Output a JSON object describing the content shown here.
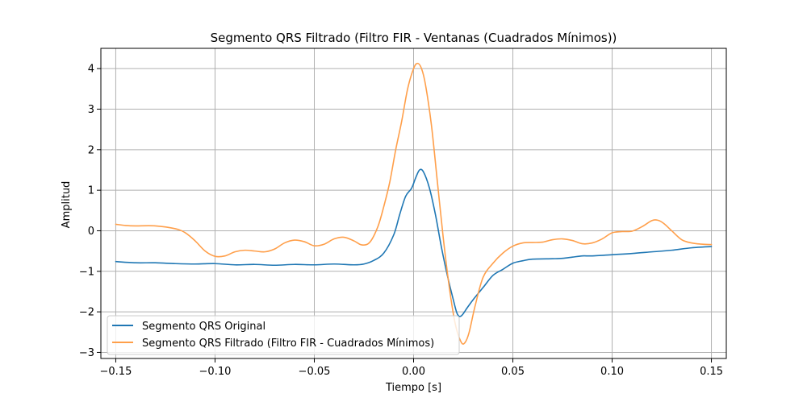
{
  "chart_data": {
    "type": "line",
    "title": "Segmento QRS Filtrado (Filtro FIR - Ventanas (Cuadrados Mínimos))",
    "xlabel": "Tiempo [s]",
    "ylabel": "Amplitud",
    "xlim": [
      -0.1575,
      0.1575
    ],
    "ylim": [
      -3.15,
      4.5
    ],
    "x_ticks": [
      -0.15,
      -0.1,
      -0.05,
      0.0,
      0.05,
      0.1,
      0.15
    ],
    "x_tick_labels": [
      "−0.15",
      "−0.10",
      "−0.05",
      "0.00",
      "0.05",
      "0.10",
      "0.15"
    ],
    "y_ticks": [
      -3,
      -2,
      -1,
      0,
      1,
      2,
      3,
      4
    ],
    "y_tick_labels": [
      "−3",
      "−2",
      "−1",
      "0",
      "1",
      "2",
      "3",
      "4"
    ],
    "grid": true,
    "legend_position": "lower-left",
    "series": [
      {
        "name": "Segmento QRS Original",
        "color": "#1f77b4",
        "points": [
          [
            -0.15,
            -0.76
          ],
          [
            -0.14,
            -0.79
          ],
          [
            -0.13,
            -0.79
          ],
          [
            -0.12,
            -0.81
          ],
          [
            -0.11,
            -0.82
          ],
          [
            -0.1,
            -0.81
          ],
          [
            -0.09,
            -0.84
          ],
          [
            -0.08,
            -0.83
          ],
          [
            -0.07,
            -0.85
          ],
          [
            -0.06,
            -0.83
          ],
          [
            -0.05,
            -0.84
          ],
          [
            -0.04,
            -0.82
          ],
          [
            -0.03,
            -0.84
          ],
          [
            -0.025,
            -0.82
          ],
          [
            -0.02,
            -0.73
          ],
          [
            -0.015,
            -0.55
          ],
          [
            -0.01,
            -0.1
          ],
          [
            -0.007,
            0.4
          ],
          [
            -0.004,
            0.85
          ],
          [
            -0.001,
            1.05
          ],
          [
            0.001,
            1.3
          ],
          [
            0.003,
            1.5
          ],
          [
            0.005,
            1.45
          ],
          [
            0.008,
            1.05
          ],
          [
            0.011,
            0.4
          ],
          [
            0.014,
            -0.4
          ],
          [
            0.017,
            -1.1
          ],
          [
            0.02,
            -1.7
          ],
          [
            0.022,
            -2.05
          ],
          [
            0.024,
            -2.1
          ],
          [
            0.027,
            -1.9
          ],
          [
            0.03,
            -1.7
          ],
          [
            0.035,
            -1.4
          ],
          [
            0.04,
            -1.1
          ],
          [
            0.045,
            -0.95
          ],
          [
            0.05,
            -0.8
          ],
          [
            0.055,
            -0.74
          ],
          [
            0.06,
            -0.7
          ],
          [
            0.07,
            -0.69
          ],
          [
            0.075,
            -0.68
          ],
          [
            0.08,
            -0.65
          ],
          [
            0.085,
            -0.62
          ],
          [
            0.09,
            -0.62
          ],
          [
            0.1,
            -0.59
          ],
          [
            0.11,
            -0.56
          ],
          [
            0.12,
            -0.52
          ],
          [
            0.13,
            -0.48
          ],
          [
            0.14,
            -0.42
          ],
          [
            0.15,
            -0.39
          ]
        ]
      },
      {
        "name": "Segmento QRS Filtrado (Filtro FIR - Cuadrados Mínimos)",
        "color": "#ff9f4a",
        "points": [
          [
            -0.15,
            0.16
          ],
          [
            -0.145,
            0.13
          ],
          [
            -0.14,
            0.12
          ],
          [
            -0.13,
            0.12
          ],
          [
            -0.12,
            0.05
          ],
          [
            -0.115,
            -0.05
          ],
          [
            -0.11,
            -0.25
          ],
          [
            -0.105,
            -0.5
          ],
          [
            -0.1,
            -0.63
          ],
          [
            -0.095,
            -0.62
          ],
          [
            -0.09,
            -0.52
          ],
          [
            -0.085,
            -0.48
          ],
          [
            -0.08,
            -0.5
          ],
          [
            -0.075,
            -0.52
          ],
          [
            -0.07,
            -0.45
          ],
          [
            -0.065,
            -0.3
          ],
          [
            -0.06,
            -0.23
          ],
          [
            -0.055,
            -0.27
          ],
          [
            -0.05,
            -0.37
          ],
          [
            -0.045,
            -0.33
          ],
          [
            -0.04,
            -0.2
          ],
          [
            -0.035,
            -0.16
          ],
          [
            -0.03,
            -0.25
          ],
          [
            -0.026,
            -0.35
          ],
          [
            -0.022,
            -0.28
          ],
          [
            -0.018,
            0.1
          ],
          [
            -0.015,
            0.6
          ],
          [
            -0.012,
            1.2
          ],
          [
            -0.009,
            2.0
          ],
          [
            -0.006,
            2.7
          ],
          [
            -0.003,
            3.5
          ],
          [
            0.0,
            4.0
          ],
          [
            0.002,
            4.13
          ],
          [
            0.004,
            4.0
          ],
          [
            0.006,
            3.6
          ],
          [
            0.009,
            2.6
          ],
          [
            0.012,
            1.2
          ],
          [
            0.015,
            -0.2
          ],
          [
            0.018,
            -1.4
          ],
          [
            0.021,
            -2.3
          ],
          [
            0.024,
            -2.75
          ],
          [
            0.026,
            -2.75
          ],
          [
            0.028,
            -2.5
          ],
          [
            0.031,
            -1.85
          ],
          [
            0.035,
            -1.15
          ],
          [
            0.04,
            -0.8
          ],
          [
            0.045,
            -0.55
          ],
          [
            0.05,
            -0.38
          ],
          [
            0.055,
            -0.3
          ],
          [
            0.06,
            -0.29
          ],
          [
            0.065,
            -0.28
          ],
          [
            0.07,
            -0.22
          ],
          [
            0.075,
            -0.2
          ],
          [
            0.08,
            -0.24
          ],
          [
            0.085,
            -0.32
          ],
          [
            0.09,
            -0.3
          ],
          [
            0.095,
            -0.2
          ],
          [
            0.1,
            -0.05
          ],
          [
            0.105,
            -0.02
          ],
          [
            0.11,
            -0.01
          ],
          [
            0.115,
            0.1
          ],
          [
            0.12,
            0.25
          ],
          [
            0.123,
            0.26
          ],
          [
            0.126,
            0.18
          ],
          [
            0.13,
            0.0
          ],
          [
            0.135,
            -0.22
          ],
          [
            0.14,
            -0.3
          ],
          [
            0.145,
            -0.33
          ],
          [
            0.15,
            -0.34
          ]
        ]
      }
    ]
  }
}
